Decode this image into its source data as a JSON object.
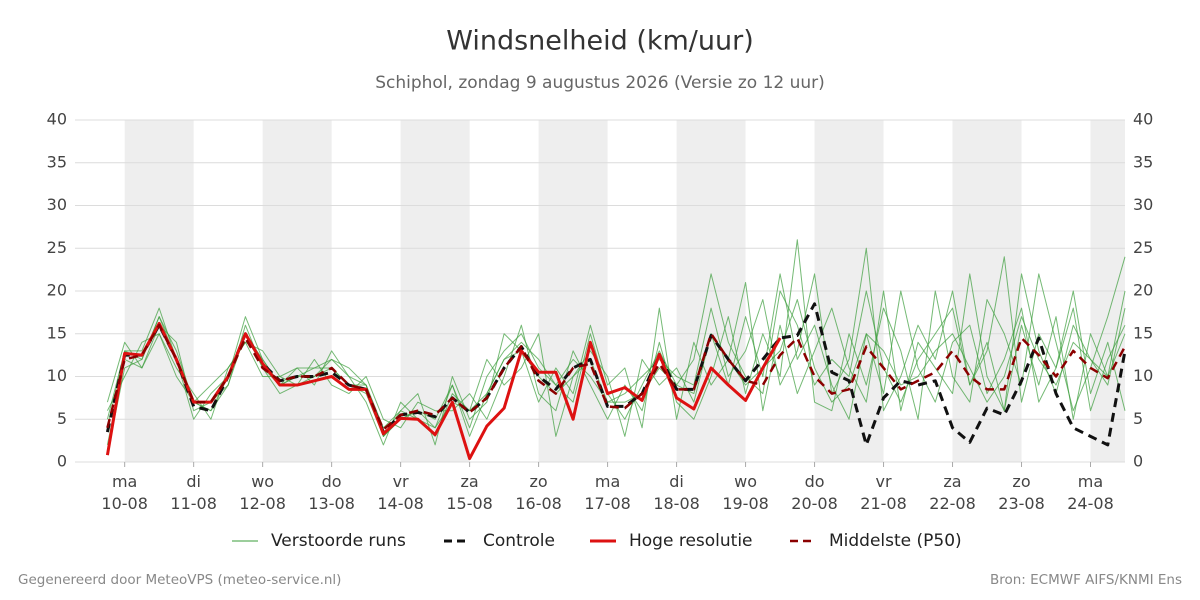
{
  "chart_data": {
    "type": "line",
    "title": "Windsnelheid (km/uur)",
    "subtitle": "Schiphol, zondag  9 augustus 2026 (Versie zo 12 uur)",
    "footer_left": "Gegenereerd door MeteoVPS (meteo-service.nl)",
    "footer_right": "Bron: ECMWF AIFS/KNMI Ens",
    "x": [
      -0.25,
      0,
      0.25,
      0.5,
      0.75,
      1,
      1.25,
      1.5,
      1.75,
      2,
      2.25,
      2.5,
      2.75,
      3,
      3.25,
      3.5,
      3.75,
      4,
      4.25,
      4.5,
      4.75,
      5,
      5.25,
      5.5,
      5.75,
      6,
      6.25,
      6.5,
      6.75,
      7,
      7.25,
      7.5,
      7.75,
      8,
      8.25,
      8.5,
      8.75,
      9,
      9.25,
      9.5,
      9.75,
      10,
      10.25,
      10.5,
      10.75,
      11,
      11.25,
      11.5,
      11.75,
      12,
      12.25,
      12.5,
      12.75,
      13,
      13.25,
      13.5,
      13.75,
      14,
      14.25,
      14.5
    ],
    "xlim": [
      -0.72,
      14.5
    ],
    "xticks": [
      {
        "value": 0,
        "label": "ma\n10-08"
      },
      {
        "value": 1,
        "label": "di\n11-08"
      },
      {
        "value": 2,
        "label": "wo\n12-08"
      },
      {
        "value": 3,
        "label": "do\n13-08"
      },
      {
        "value": 4,
        "label": "vr\n14-08"
      },
      {
        "value": 5,
        "label": "za\n15-08"
      },
      {
        "value": 6,
        "label": "zo\n16-08"
      },
      {
        "value": 7,
        "label": "ma\n17-08"
      },
      {
        "value": 8,
        "label": "di\n18-08"
      },
      {
        "value": 9,
        "label": "wo\n19-08"
      },
      {
        "value": 10,
        "label": "do\n20-08"
      },
      {
        "value": 11,
        "label": "vr\n21-08"
      },
      {
        "value": 12,
        "label": "za\n22-08"
      },
      {
        "value": 13,
        "label": "zo\n23-08"
      },
      {
        "value": 14,
        "label": "ma\n24-08"
      }
    ],
    "ylim": [
      0,
      40
    ],
    "yticks": [
      0,
      5,
      10,
      15,
      20,
      25,
      30,
      35,
      40
    ],
    "grid": true,
    "members": {
      "name": "Verstoorde runs",
      "color": "#3a9c3a",
      "runs": [
        [
          1,
          11,
          12,
          17,
          13,
          7,
          6,
          9,
          16,
          11,
          9,
          10,
          11,
          12,
          10,
          9,
          3,
          6,
          5,
          4,
          9,
          3,
          8,
          12,
          14,
          12,
          9,
          7,
          15,
          8,
          5,
          9,
          13,
          9,
          12,
          22,
          14,
          10,
          8,
          20,
          16,
          9,
          12,
          10,
          20,
          11,
          7,
          12,
          15,
          18,
          9,
          14,
          6,
          22,
          13,
          8,
          16,
          12,
          9,
          18
        ],
        [
          7,
          14,
          11,
          15,
          11,
          8,
          5,
          11,
          14,
          10,
          10,
          9,
          12,
          9,
          8,
          10,
          5,
          4,
          7,
          6,
          6,
          8,
          5,
          10,
          16,
          8,
          6,
          13,
          9,
          5,
          9,
          6,
          14,
          7,
          5,
          10,
          17,
          8,
          15,
          10,
          26,
          7,
          6,
          15,
          9,
          18,
          13,
          5,
          20,
          10,
          7,
          19,
          15,
          9,
          22,
          14,
          6,
          11,
          17,
          24
        ],
        [
          5,
          13,
          13,
          18,
          12,
          5,
          8,
          10,
          17,
          12,
          9,
          11,
          9,
          13,
          10,
          7,
          2,
          7,
          5,
          3,
          8,
          6,
          12,
          9,
          11,
          15,
          3,
          10,
          13,
          10,
          3,
          12,
          9,
          11,
          7,
          15,
          9,
          17,
          10,
          22,
          12,
          16,
          9,
          5,
          15,
          8,
          20,
          11,
          7,
          14,
          16,
          8,
          12,
          18,
          7,
          11,
          20,
          8,
          14,
          6
        ],
        [
          2,
          12,
          11,
          16,
          14,
          6,
          7,
          9,
          15,
          11,
          8,
          9,
          10,
          12,
          11,
          9,
          4,
          6,
          8,
          2,
          10,
          5,
          7,
          15,
          13,
          7,
          11,
          8,
          16,
          9,
          11,
          4,
          18,
          5,
          14,
          9,
          12,
          21,
          6,
          16,
          8,
          13,
          18,
          11,
          7,
          20,
          6,
          14,
          11,
          8,
          22,
          10,
          6,
          16,
          9,
          17,
          5,
          15,
          10,
          20
        ],
        [
          6,
          10,
          14,
          15,
          10,
          7,
          9,
          11,
          14,
          13,
          10,
          11,
          11,
          11,
          9,
          8,
          3,
          5,
          6,
          5,
          9,
          4,
          10,
          13,
          15,
          11,
          9,
          12,
          10,
          7,
          8,
          10,
          12,
          10,
          9,
          18,
          10,
          13,
          19,
          9,
          13,
          22,
          8,
          12,
          25,
          6,
          10,
          16,
          12,
          20,
          9,
          13,
          24,
          7,
          15,
          11,
          18,
          6,
          12,
          16
        ],
        [
          4,
          13,
          12,
          17,
          12,
          7,
          6,
          10,
          15,
          12,
          9,
          10,
          10,
          11,
          9,
          9,
          3,
          5,
          6,
          4,
          7,
          6,
          8,
          12,
          13,
          10,
          8,
          10,
          12,
          7,
          7,
          8,
          11,
          9,
          8,
          15,
          12,
          9,
          11,
          13,
          19,
          11,
          7,
          9,
          15,
          13,
          9,
          10,
          13,
          15,
          11,
          7,
          10,
          17,
          12,
          9,
          14,
          12,
          10,
          15
        ]
      ]
    },
    "series": [
      {
        "name": "Controle",
        "color": "#111111",
        "dash": true,
        "width": 3,
        "values": [
          3.5,
          12.5,
          12.5,
          16,
          12,
          6.5,
          6,
          10,
          15,
          11.5,
          9.5,
          10,
          10,
          10.5,
          9,
          8.5,
          3.5,
          5.5,
          5.8,
          5.3,
          7.5,
          5.8,
          7.5,
          11,
          13.5,
          10,
          8.5,
          11,
          12,
          6.5,
          6.5,
          8,
          12.5,
          8.5,
          8.5,
          14.8,
          12,
          9.5,
          12,
          14.5,
          14.8,
          18.5,
          10.5,
          9.5,
          2,
          7.5,
          9.5,
          9,
          9.5,
          4,
          2.3,
          6.3,
          5.5,
          9.5,
          14.5,
          8,
          4,
          3,
          2,
          13
        ]
      },
      {
        "name": "Hoge resolutie",
        "color": "#dd1111",
        "dash": false,
        "width": 3,
        "values": [
          0.8,
          12.7,
          12.5,
          16.2,
          12,
          7,
          7,
          10,
          15,
          11.5,
          9,
          9,
          9.5,
          10,
          8.5,
          8.5,
          3.3,
          5.1,
          5,
          3.2,
          7,
          0.4,
          4.2,
          6.3,
          13,
          10.5,
          10.5,
          5,
          14,
          8,
          8.7,
          7.2,
          12.6,
          7.5,
          6.2,
          11,
          9,
          7.2,
          11,
          14.5,
          null,
          null,
          null,
          null,
          null,
          null,
          null,
          null,
          null,
          null,
          null,
          null,
          null,
          null,
          null,
          null,
          null,
          null,
          null,
          null
        ]
      },
      {
        "name": "Middelste (P50)",
        "color": "#8b0000",
        "dash": true,
        "width": 2.5,
        "values": [
          4,
          12,
          12.5,
          16,
          12,
          7,
          7,
          10,
          14.5,
          11,
          9.5,
          10,
          10,
          11,
          9,
          8.5,
          3.8,
          5.5,
          6,
          5.5,
          7.5,
          5.8,
          7.5,
          11,
          13.5,
          9.5,
          8,
          11,
          11.5,
          6.5,
          6.3,
          8,
          11.5,
          8.5,
          8.5,
          15,
          12,
          9.5,
          9,
          12.5,
          14.5,
          10,
          8,
          8.5,
          13.5,
          11,
          8.5,
          9.5,
          10.5,
          13,
          10,
          8.5,
          8.5,
          14.5,
          12.5,
          10,
          13,
          11,
          9.8,
          13.5
        ]
      }
    ]
  }
}
